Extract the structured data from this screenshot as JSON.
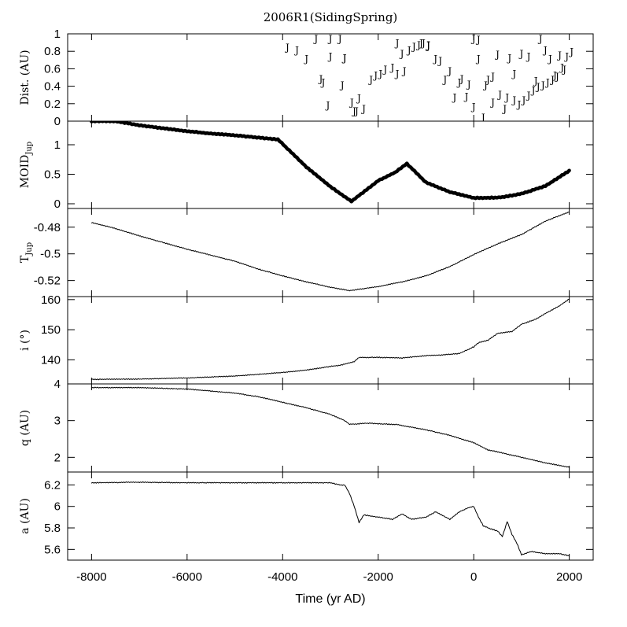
{
  "chart_data": {
    "type": "line",
    "title": "2006R1(SidingSpring)",
    "xlabel": "Time (yr AD)",
    "xlim": [
      -8500,
      2500
    ],
    "xticks": [
      -8000,
      -6000,
      -4000,
      -2000,
      0,
      2000
    ],
    "xtick_labels": [
      "-8000",
      "-6000",
      "-4000",
      "-2000",
      "0",
      "2000"
    ],
    "panels": [
      {
        "id": "dist",
        "ylabel": "Dist. (AU)",
        "ylabel_main": "Dist. (AU)",
        "ylabel_sub": "",
        "ylim": [
          0,
          1
        ],
        "yticks": [
          0,
          0.2,
          0.4,
          0.6,
          0.8,
          1
        ],
        "ytick_labels": [
          "0",
          "0.2",
          "0.4",
          "0.6",
          "0.8",
          "1"
        ],
        "style": "markers",
        "marker": "J",
        "series": [
          {
            "x": [
              -3900,
              -3700,
              -3500,
              -3300,
              -3000,
              -2750,
              -2550,
              -2450,
              -2300,
              -3200,
              -3150,
              -3050,
              -2800,
              -2700,
              -2500,
              -2400,
              -2150,
              -2050,
              -1950,
              -1850,
              -1700,
              -1600,
              -1500,
              -1350,
              -1250,
              -1150,
              -1050,
              -950,
              -800,
              -700,
              -600,
              -400,
              -250,
              -100,
              0,
              100,
              200,
              300,
              400,
              500,
              650,
              750,
              850,
              950,
              1050,
              1150,
              1250,
              1350,
              1450,
              1550,
              1650,
              1750,
              1850,
              1950,
              2050,
              -3000,
              -2700,
              -1600,
              -1450,
              -1100,
              -950,
              -500,
              -300,
              -150,
              0,
              100,
              250,
              400,
              550,
              700,
              850,
              1000,
              1150,
              1300,
              1400,
              1500,
              1600,
              1700,
              1800,
              1900
            ],
            "y": [
              0.85,
              0.82,
              0.72,
              0.95,
              0.75,
              0.42,
              0.22,
              0.12,
              0.15,
              0.49,
              0.45,
              0.19,
              0.95,
              0.73,
              0.12,
              0.27,
              0.48,
              0.53,
              0.55,
              0.6,
              0.62,
              0.9,
              0.78,
              0.82,
              0.86,
              0.88,
              0.9,
              0.88,
              0.72,
              0.7,
              0.48,
              0.28,
              0.49,
              0.43,
              0.17,
              0.94,
              0.05,
              0.48,
              0.52,
              0.77,
              0.15,
              0.73,
              0.25,
              0.2,
              0.25,
              0.3,
              0.36,
              0.4,
              0.42,
              0.45,
              0.48,
              0.52,
              0.62,
              0.75,
              0.8,
              0.95,
              0.73,
              0.55,
              0.58,
              0.9,
              0.87,
              0.58,
              0.45,
              0.29,
              0.95,
              0.72,
              0.42,
              0.22,
              0.31,
              0.28,
              0.55,
              0.78,
              0.75,
              0.47,
              0.95,
              0.82,
              0.72,
              0.53,
              0.76,
              0.6
            ]
          }
        ]
      },
      {
        "id": "moid",
        "ylabel": "MOID Jup",
        "ylabel_main": "MOID",
        "ylabel_sub": "Jup",
        "ylim": [
          -0.08,
          1.4
        ],
        "yticks": [
          0,
          0.5,
          1
        ],
        "ytick_labels": [
          "0",
          "0.5",
          "1"
        ],
        "style": "thick",
        "series": [
          {
            "x": [
              -8000,
              -7500,
              -7000,
              -6500,
              -6000,
              -5500,
              -5000,
              -4500,
              -4100,
              -3500,
              -3000,
              -2560,
              -2000,
              -1650,
              -1400,
              -1000,
              -500,
              0,
              300,
              600,
              1000,
              1500,
              2000
            ],
            "y": [
              1.4,
              1.4,
              1.33,
              1.28,
              1.23,
              1.19,
              1.16,
              1.12,
              1.09,
              0.62,
              0.29,
              0.04,
              0.39,
              0.53,
              0.68,
              0.36,
              0.2,
              0.1,
              0.1,
              0.11,
              0.17,
              0.3,
              0.56
            ]
          }
        ]
      },
      {
        "id": "tjup",
        "ylabel": "T Jup",
        "ylabel_main": "T",
        "ylabel_sub": "Jup",
        "ylim": [
          -0.532,
          -0.466
        ],
        "yticks": [
          -0.48,
          -0.5,
          -0.52
        ],
        "ytick_labels": [
          "-0.48",
          "-0.5",
          "-0.52"
        ],
        "style": "thin",
        "series": [
          {
            "x": [
              -8000,
              -7500,
              -7000,
              -6500,
              -6000,
              -5500,
              -5000,
              -4500,
              -4000,
              -3500,
              -3000,
              -2600,
              -2000,
              -1500,
              -1000,
              -500,
              0,
              500,
              1000,
              1500,
              2000
            ],
            "y": [
              -0.4765,
              -0.481,
              -0.4865,
              -0.4915,
              -0.4965,
              -0.501,
              -0.5055,
              -0.5115,
              -0.5165,
              -0.521,
              -0.525,
              -0.5275,
              -0.5245,
              -0.521,
              -0.5165,
              -0.5095,
              -0.5005,
              -0.4925,
              -0.4855,
              -0.4755,
              -0.4685
            ]
          }
        ]
      },
      {
        "id": "incl",
        "ylabel": "i (°)",
        "ylabel_main": "i (°)",
        "ylabel_sub": "",
        "ylim": [
          132,
          161
        ],
        "yticks": [
          140,
          150,
          160
        ],
        "ytick_labels": [
          "140",
          "150",
          "160"
        ],
        "style": "thin",
        "series": [
          {
            "x": [
              -8000,
              -7000,
              -6000,
              -5000,
              -4000,
              -3500,
              -3000,
              -2800,
              -2500,
              -2400,
              -2000,
              -1500,
              -1000,
              -700,
              -300,
              0,
              100,
              300,
              500,
              800,
              1000,
              1300,
              1500,
              1800,
              2000
            ],
            "y": [
              133.5,
              133.6,
              134,
              134.6,
              135.8,
              136.6,
              137.8,
              138.2,
              139.4,
              140.8,
              140.8,
              140.6,
              141.4,
              141.6,
              142.1,
              144.3,
              145.7,
              146.5,
              148.8,
              149.4,
              151.8,
              153.5,
              155.4,
              158,
              160.2
            ]
          }
        ]
      },
      {
        "id": "q",
        "ylabel": "q (AU)",
        "ylabel_main": "q (AU)",
        "ylabel_sub": "",
        "ylim": [
          1.6,
          4.0
        ],
        "yticks": [
          2,
          3,
          4
        ],
        "ytick_labels": [
          "2",
          "3",
          "4"
        ],
        "style": "thin",
        "series": [
          {
            "x": [
              -8000,
              -7000,
              -6000,
              -5000,
              -4500,
              -4000,
              -3500,
              -3000,
              -2700,
              -2600,
              -2200,
              -1600,
              -1000,
              -500,
              0,
              300,
              500,
              1000,
              1500,
              2000
            ],
            "y": [
              3.9,
              3.9,
              3.86,
              3.75,
              3.65,
              3.5,
              3.35,
              3.17,
              3.0,
              2.9,
              2.93,
              2.89,
              2.75,
              2.6,
              2.4,
              2.2,
              2.15,
              2.0,
              1.85,
              1.73
            ]
          }
        ]
      },
      {
        "id": "a",
        "ylabel": "a (AU)",
        "ylabel_main": "a (AU)",
        "ylabel_sub": "",
        "ylim": [
          5.5,
          6.32
        ],
        "yticks": [
          5.6,
          5.8,
          6,
          6.2
        ],
        "ytick_labels": [
          "5.6",
          "5.8",
          "6",
          "6.2"
        ],
        "style": "thin",
        "series": [
          {
            "x": [
              -8000,
              -7000,
              -6000,
              -5000,
              -4000,
              -3000,
              -2800,
              -2700,
              -2600,
              -2500,
              -2400,
              -2300,
              -2000,
              -1700,
              -1500,
              -1300,
              -1000,
              -800,
              -500,
              -300,
              -100,
              0,
              100,
              200,
              300,
              500,
              600,
              700,
              800,
              900,
              1000,
              1200,
              1500,
              1800,
              2000
            ],
            "y": [
              6.22,
              6.225,
              6.22,
              6.22,
              6.22,
              6.22,
              6.2,
              6.2,
              6.12,
              6.0,
              5.85,
              5.92,
              5.9,
              5.88,
              5.93,
              5.88,
              5.9,
              5.95,
              5.88,
              5.95,
              5.99,
              6.0,
              5.9,
              5.82,
              5.8,
              5.77,
              5.72,
              5.86,
              5.74,
              5.66,
              5.55,
              5.58,
              5.56,
              5.56,
              5.54
            ]
          }
        ]
      }
    ]
  }
}
